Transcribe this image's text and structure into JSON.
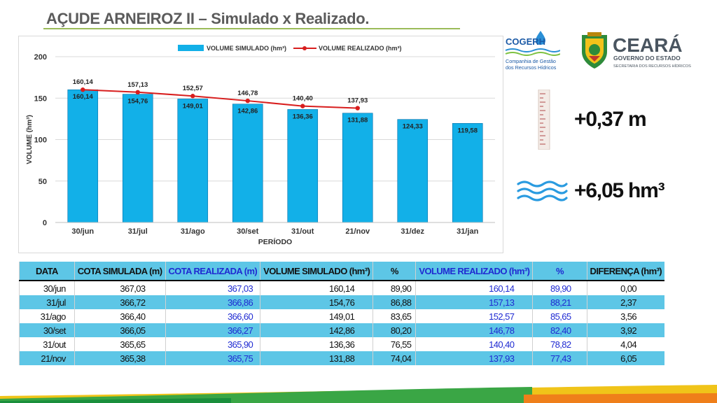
{
  "title": "AÇUDE ARNEIROZ II – Simulado x Realizado.",
  "logos": {
    "cogerh_name": "COGERH",
    "cogerh_line1": "Companhia de Gestão",
    "cogerh_line2": "dos Recursos Hídricos",
    "ceara_name": "CEARÁ",
    "ceara_line1": "GOVERNO DO ESTADO",
    "ceara_line2": "SECRETARIA DOS RECURSOS HÍDRICOS"
  },
  "metrics": {
    "level_change": "+0,37 m",
    "volume_change": "+6,05 hm³"
  },
  "colors": {
    "bar": "#12b0e8",
    "line": "#d81e1e",
    "table_band": "#5dc6e6",
    "blue_text": "#1f2ad2",
    "title_rule": "#9bbb59"
  },
  "chart_data": {
    "type": "bar",
    "categories": [
      "30/jun",
      "31/jul",
      "31/ago",
      "30/set",
      "31/out",
      "21/nov",
      "31/dez",
      "31/jan"
    ],
    "series": [
      {
        "name": "VOLUME SIMULADO (hm³)",
        "type": "bar",
        "values": [
          160.14,
          154.76,
          149.01,
          142.86,
          136.36,
          131.88,
          124.33,
          119.58
        ],
        "labels": [
          "160,14",
          "154,76",
          "149,01",
          "142,86",
          "136,36",
          "131,88",
          "124,33",
          "119,58"
        ]
      },
      {
        "name": "VOLUME REALIZADO (hm³)",
        "type": "line",
        "values": [
          160.14,
          157.13,
          152.57,
          146.78,
          140.4,
          137.93,
          null,
          null
        ],
        "labels": [
          "160,14",
          "157,13",
          "152,57",
          "146,78",
          "140,40",
          "137,93",
          "",
          ""
        ]
      }
    ],
    "xlabel": "PERÍODO",
    "ylabel": "VOLUME (hm³)",
    "ylim": [
      0,
      200
    ],
    "yticks": [
      0,
      50,
      100,
      150,
      200
    ],
    "grid": true,
    "legend": "top-center"
  },
  "table": {
    "headers": [
      "DATA",
      "COTA SIMULADA (m)",
      "COTA REALIZADA (m)",
      "VOLUME SIMULADO (hm³)",
      "%",
      "VOLUME REALIZADO (hm³)",
      "%",
      "DIFERENÇA (hm³)"
    ],
    "rows": [
      [
        "30/jun",
        "367,03",
        "367,03",
        "160,14",
        "89,90",
        "160,14",
        "89,90",
        "0,00"
      ],
      [
        "31/jul",
        "366,72",
        "366,86",
        "154,76",
        "86,88",
        "157,13",
        "88,21",
        "2,37"
      ],
      [
        "31/ago",
        "366,40",
        "366,60",
        "149,01",
        "83,65",
        "152,57",
        "85,65",
        "3,56"
      ],
      [
        "30/set",
        "366,05",
        "366,27",
        "142,86",
        "80,20",
        "146,78",
        "82,40",
        "3,92"
      ],
      [
        "31/out",
        "365,65",
        "365,90",
        "136,36",
        "76,55",
        "140,40",
        "78,82",
        "4,04"
      ],
      [
        "21/nov",
        "365,38",
        "365,75",
        "131,88",
        "74,04",
        "137,93",
        "77,43",
        "6,05"
      ]
    ]
  }
}
